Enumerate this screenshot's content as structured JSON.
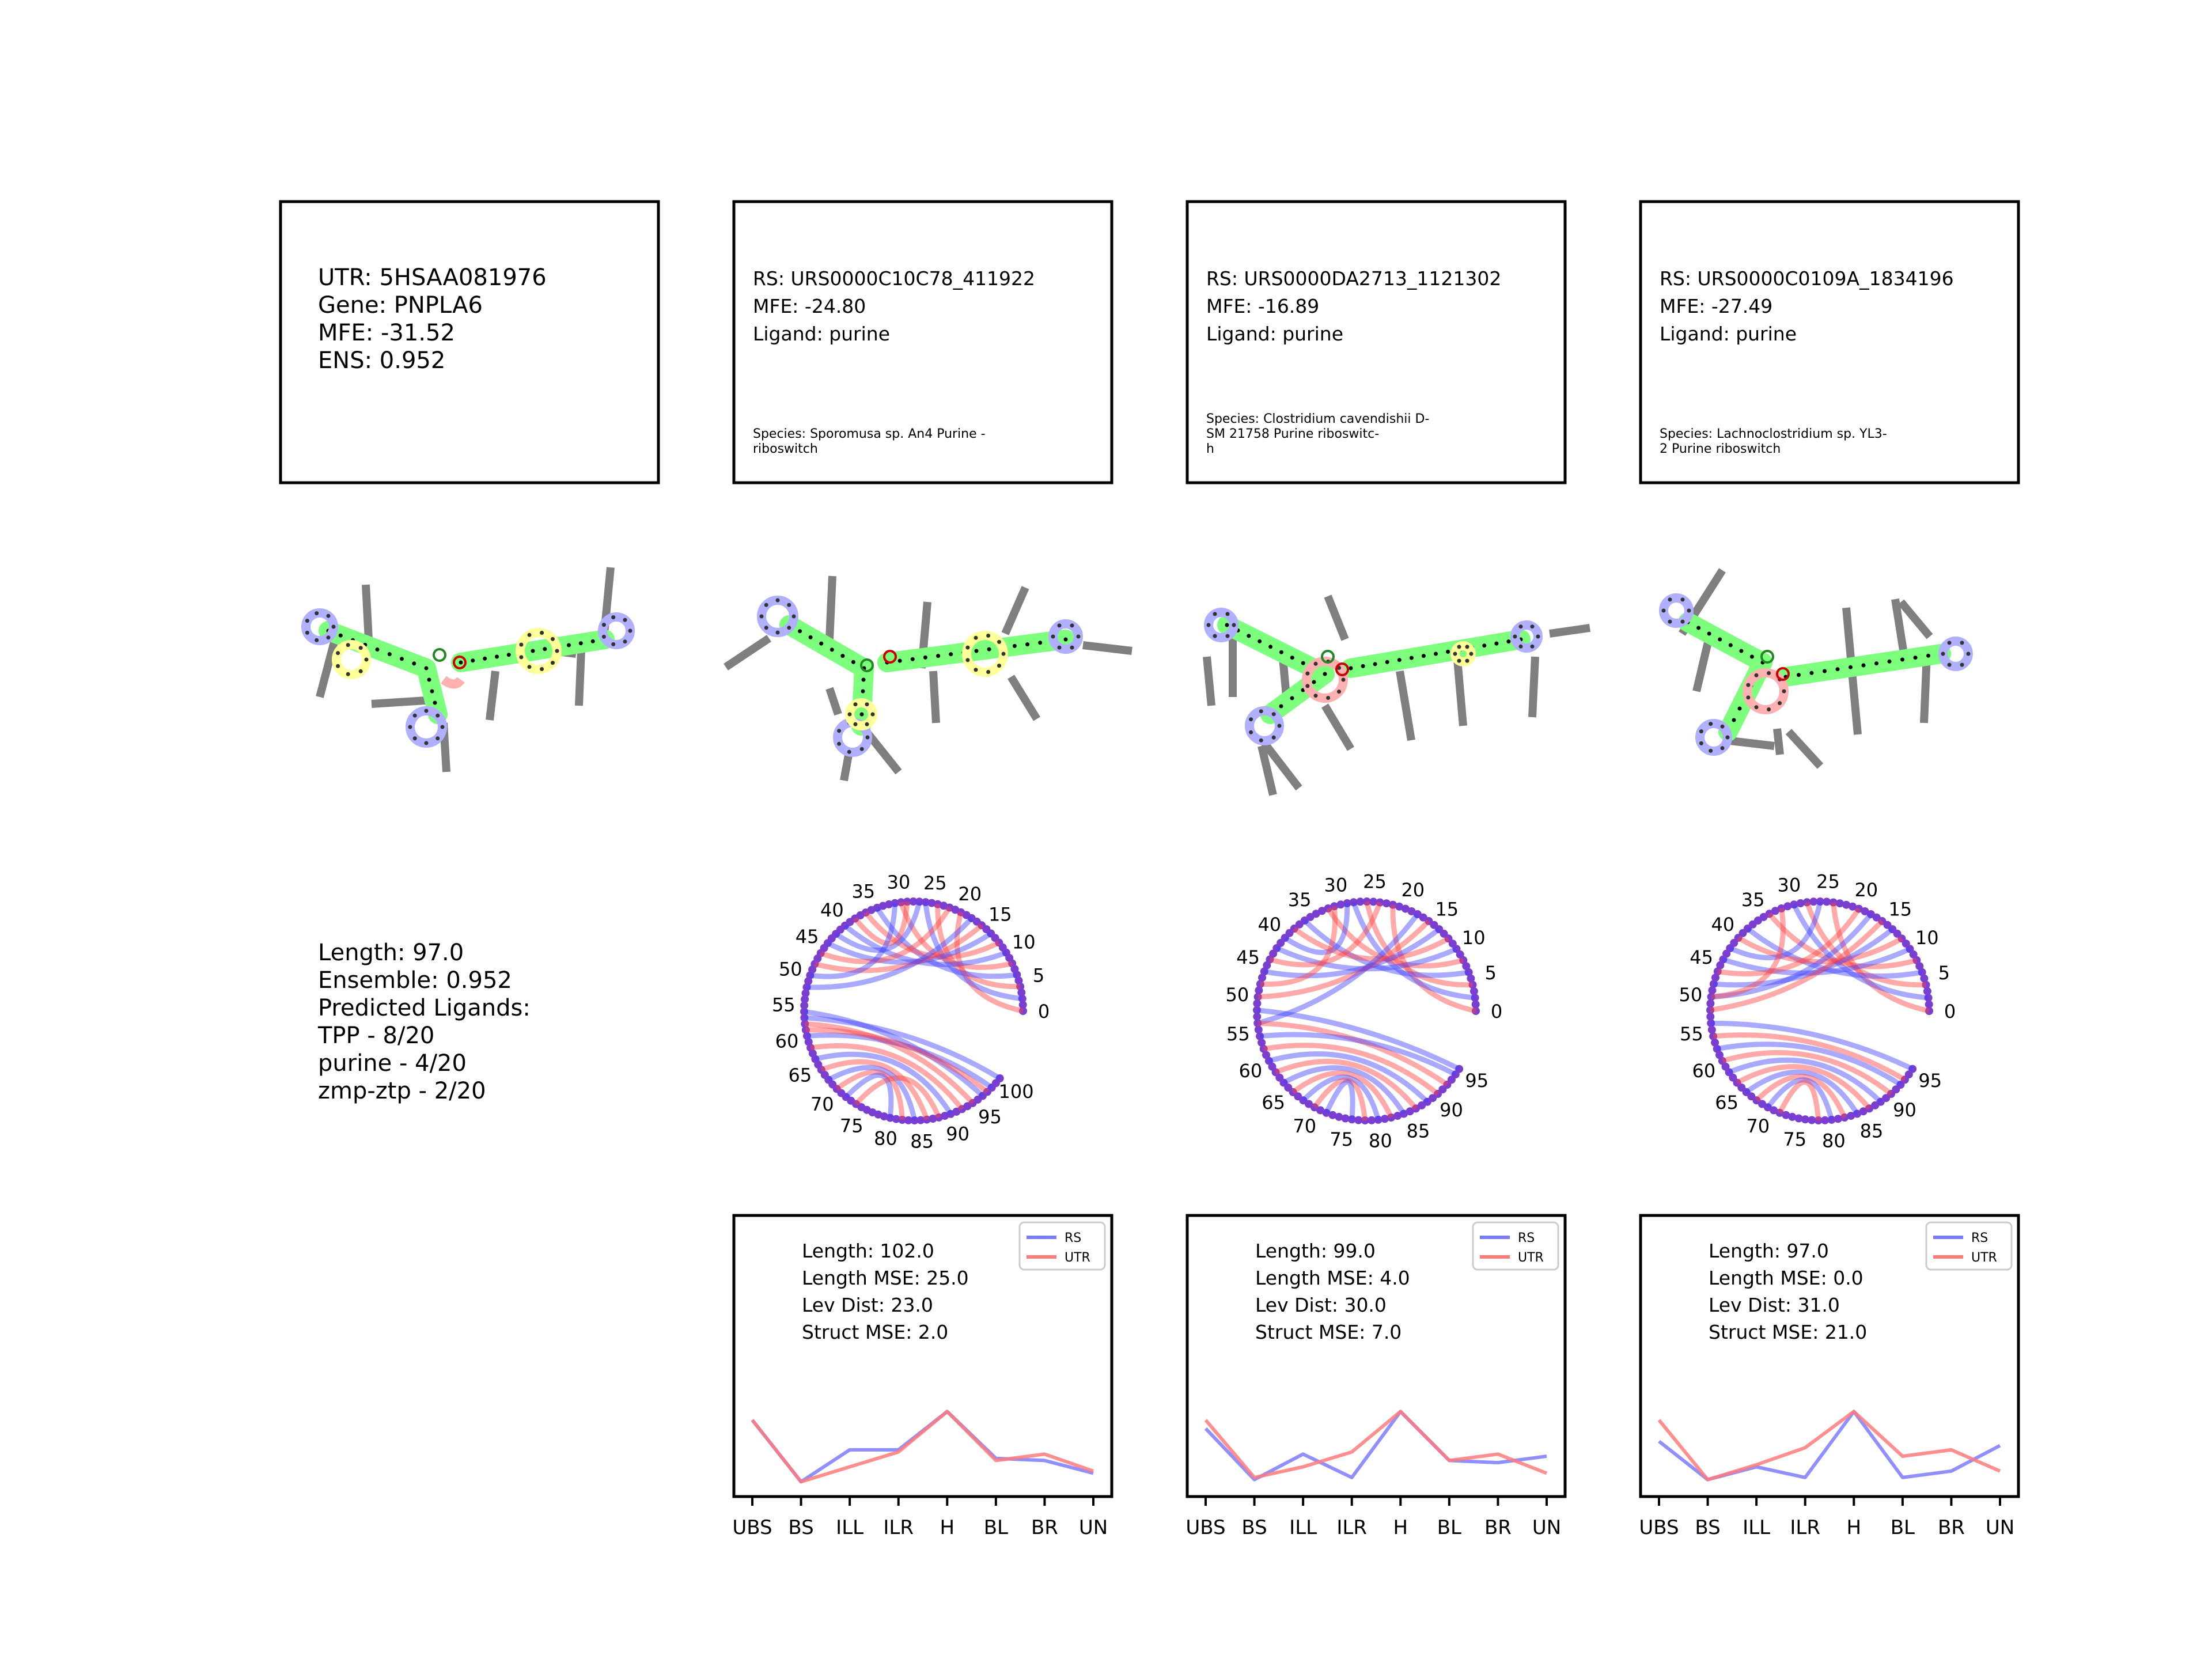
{
  "utr_panel": {
    "lines": [
      "UTR: 5HSAA081976",
      "Gene: PNPLA6",
      "MFE: -31.52",
      "ENS: 0.952"
    ]
  },
  "summary_panel": {
    "lines": [
      "Length: 97.0",
      "Ensemble: 0.952",
      "Predicted Ligands:",
      "TPP - 8/20",
      "purine - 4/20",
      "zmp-ztp - 2/20"
    ]
  },
  "rs_panels": [
    {
      "lines": [
        "RS: URS0000C10C78_411922",
        "MFE: -24.80",
        "Ligand: purine"
      ],
      "species": [
        "Species: Sporomusa sp. An4 Purine -",
        "riboswitch"
      ]
    },
    {
      "lines": [
        "RS: URS0000DA2713_1121302",
        "MFE: -16.89",
        "Ligand: purine"
      ],
      "species": [
        "Species: Clostridium cavendishii D-",
        "SM 21758 Purine riboswitc-",
        "h"
      ]
    },
    {
      "lines": [
        "RS: URS0000C0109A_1834196",
        "MFE: -27.49",
        "Ligand: purine"
      ],
      "species": [
        "Species: Lachnoclostridium sp. YL3-",
        "2 Purine riboswitch"
      ]
    }
  ],
  "arc_diagrams": [
    {
      "max": 100,
      "labels": [
        "0",
        "5",
        "10",
        "15",
        "20",
        "25",
        "30",
        "35",
        "40",
        "45",
        "50",
        "55",
        "60",
        "65",
        "70",
        "75",
        "80",
        "85",
        "90",
        "95",
        "100"
      ]
    },
    {
      "max": 95,
      "labels": [
        "0",
        "5",
        "10",
        "15",
        "20",
        "25",
        "30",
        "35",
        "40",
        "45",
        "50",
        "55",
        "60",
        "65",
        "70",
        "75",
        "80",
        "85",
        "90",
        "95"
      ]
    },
    {
      "max": 95,
      "labels": [
        "0",
        "5",
        "10",
        "15",
        "20",
        "25",
        "30",
        "35",
        "40",
        "45",
        "50",
        "55",
        "60",
        "65",
        "70",
        "75",
        "80",
        "85",
        "90",
        "95"
      ]
    }
  ],
  "colors": {
    "rs": "#7b7bff",
    "utr": "#ff7b7b",
    "stem": "#7dff7d",
    "hairpin": "#b0b0ff",
    "interior": "#ffff99",
    "multiloop": "#ffb0b0",
    "bar": "#7f7f7f"
  },
  "chart_data": [
    {
      "type": "line",
      "categories": [
        "UBS",
        "BS",
        "ILL",
        "ILR",
        "H",
        "BL",
        "BR",
        "UN"
      ],
      "series": [
        {
          "name": "RS",
          "values": [
            3.0,
            0.1,
            1.6,
            1.6,
            3.4,
            1.2,
            1.1,
            0.5
          ]
        },
        {
          "name": "UTR",
          "values": [
            3.0,
            0.1,
            0.8,
            1.5,
            3.4,
            1.1,
            1.4,
            0.6
          ]
        }
      ],
      "legend_position": "top-right",
      "annotations": [
        "Length: 102.0",
        "Length MSE: 25.0",
        "Lev Dist: 23.0",
        "Struct MSE: 2.0"
      ]
    },
    {
      "type": "line",
      "categories": [
        "UBS",
        "BS",
        "ILL",
        "ILR",
        "H",
        "BL",
        "BR",
        "UN"
      ],
      "series": [
        {
          "name": "RS",
          "values": [
            2.6,
            0.2,
            1.4,
            0.3,
            3.4,
            1.1,
            1.0,
            1.3
          ]
        },
        {
          "name": "UTR",
          "values": [
            3.0,
            0.3,
            0.8,
            1.5,
            3.4,
            1.1,
            1.4,
            0.5
          ]
        }
      ],
      "legend_position": "top-right",
      "annotations": [
        "Length: 99.0",
        "Length MSE: 4.0",
        "Lev Dist: 30.0",
        "Struct MSE: 7.0"
      ]
    },
    {
      "type": "line",
      "categories": [
        "UBS",
        "BS",
        "ILL",
        "ILR",
        "H",
        "BL",
        "BR",
        "UN"
      ],
      "series": [
        {
          "name": "RS",
          "values": [
            2.0,
            0.2,
            0.8,
            0.3,
            3.4,
            0.3,
            0.6,
            1.8
          ]
        },
        {
          "name": "UTR",
          "values": [
            3.0,
            0.2,
            0.9,
            1.7,
            3.4,
            1.3,
            1.6,
            0.6
          ]
        }
      ],
      "legend_position": "top-right",
      "annotations": [
        "Length: 97.0",
        "Length MSE: 0.0",
        "Lev Dist: 31.0",
        "Struct MSE: 21.0"
      ]
    }
  ]
}
